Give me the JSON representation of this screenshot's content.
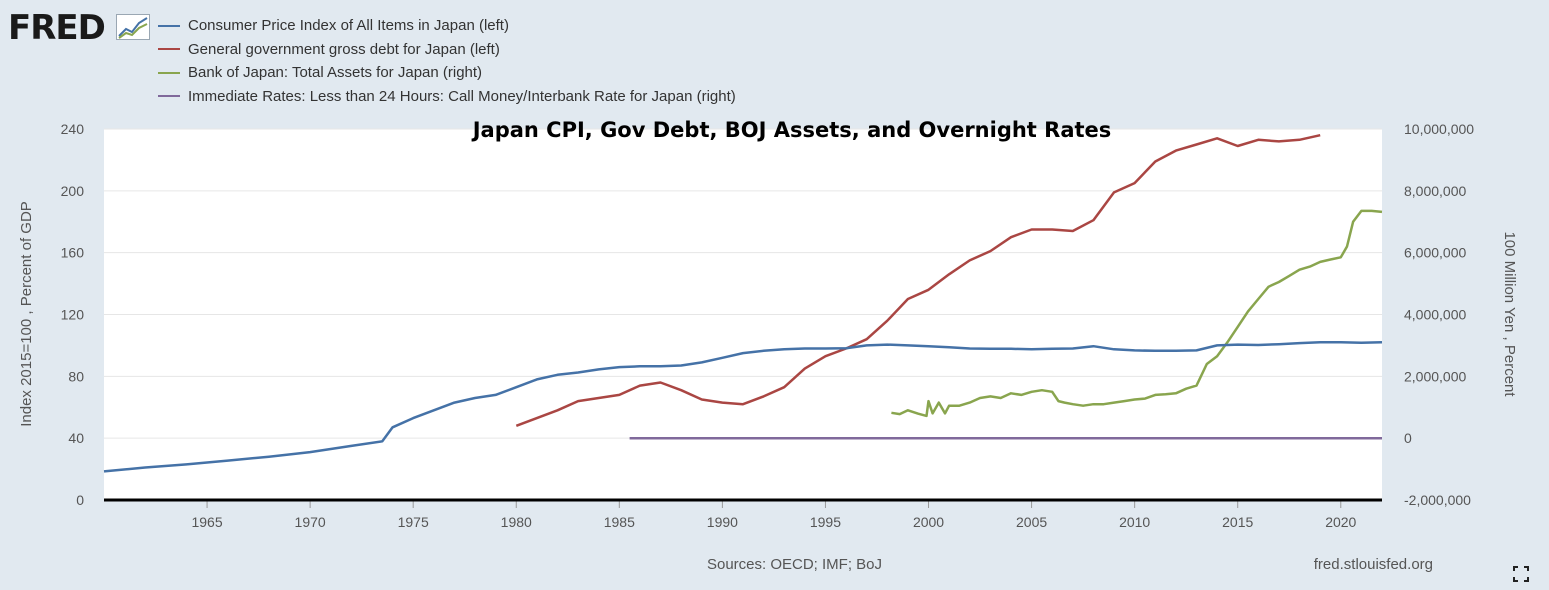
{
  "header": {
    "logo_text": "FRED"
  },
  "colors": {
    "cpi": "#4572a7",
    "debt": "#aa4643",
    "boj": "#89a54e",
    "rate": "#80699b"
  },
  "chart_data": {
    "type": "line",
    "title": "Japan CPI, Gov Debt, BOJ Assets, and Overnight Rates",
    "ylabel_left": "Index 2015=100 , Percent of GDP",
    "ylabel_right": "100 Million Yen , Percent",
    "xlim": [
      1960,
      2022
    ],
    "ylim_left": [
      0,
      240
    ],
    "ylim_right": [
      -2000000,
      10000000
    ],
    "x_ticks": [
      1965,
      1970,
      1975,
      1980,
      1985,
      1990,
      1995,
      2000,
      2005,
      2010,
      2015,
      2020
    ],
    "y_ticks_left": [
      "240",
      "200",
      "160",
      "120",
      "80",
      "40",
      "0"
    ],
    "y_ticks_right": [
      "10,000,000",
      "8,000,000",
      "6,000,000",
      "4,000,000",
      "2,000,000",
      "0",
      "-2,000,000"
    ],
    "grid": true,
    "legend_position": "top-left",
    "series": [
      {
        "name": "Consumer Price Index of All Items in Japan (left)",
        "axis": "left",
        "color": "#4572a7",
        "x": [
          1960,
          1962,
          1964,
          1966,
          1968,
          1970,
          1972,
          1973.5,
          1974,
          1975,
          1976,
          1977,
          1978,
          1979,
          1980,
          1981,
          1982,
          1983,
          1984,
          1985,
          1986,
          1987,
          1988,
          1989,
          1990,
          1991,
          1992,
          1993,
          1994,
          1995,
          1996,
          1997,
          1998,
          1999,
          2000,
          2001,
          2002,
          2003,
          2004,
          2005,
          2006,
          2007,
          2008,
          2009,
          2010,
          2011,
          2012,
          2013,
          2014,
          2015,
          2016,
          2017,
          2018,
          2019,
          2020,
          2021,
          2022
        ],
        "y": [
          18.5,
          21,
          23,
          25.5,
          28,
          31,
          35,
          38,
          47,
          53,
          58,
          63,
          66,
          68,
          73,
          78,
          81,
          82.5,
          84.5,
          86,
          86.5,
          86.5,
          87,
          89,
          92,
          95,
          96.5,
          97.5,
          98,
          98,
          98.2,
          100,
          100.5,
          100,
          99.5,
          98.8,
          98,
          97.8,
          97.8,
          97.5,
          97.8,
          98,
          99.5,
          97.5,
          96.8,
          96.5,
          96.5,
          96.8,
          100,
          100.5,
          100.3,
          100.8,
          101.5,
          102,
          102,
          101.7,
          102
        ]
      },
      {
        "name": "General government gross debt for Japan (left)",
        "axis": "left",
        "color": "#aa4643",
        "x": [
          1980,
          1981,
          1982,
          1983,
          1984,
          1985,
          1986,
          1987,
          1988,
          1989,
          1990,
          1991,
          1992,
          1993,
          1994,
          1995,
          1996,
          1997,
          1998,
          1999,
          2000,
          2001,
          2002,
          2003,
          2004,
          2005,
          2006,
          2007,
          2008,
          2009,
          2010,
          2011,
          2012,
          2013,
          2014,
          2015,
          2016,
          2017,
          2018,
          2019
        ],
        "y": [
          48,
          53,
          58,
          64,
          66,
          68,
          74,
          76,
          71,
          65,
          63,
          62,
          67,
          73,
          85,
          93,
          98,
          104,
          116,
          130,
          136,
          146,
          155,
          161,
          170,
          175,
          175,
          174,
          181,
          199,
          205,
          219,
          226,
          230,
          234,
          229,
          233,
          232,
          233,
          236
        ]
      },
      {
        "name": "Bank of Japan: Total Assets for Japan (right)",
        "axis": "right",
        "color": "#89a54e",
        "x": [
          1998.2,
          1998.6,
          1999,
          1999.5,
          1999.9,
          2000,
          2000.2,
          2000.5,
          2000.8,
          2001,
          2001.5,
          2002,
          2002.5,
          2003,
          2003.5,
          2004,
          2004.5,
          2005,
          2005.5,
          2006,
          2006.3,
          2006.6,
          2007,
          2007.5,
          2008,
          2008.5,
          2009,
          2009.5,
          2010,
          2010.5,
          2011,
          2011.5,
          2012,
          2012.5,
          2013,
          2013.5,
          2014,
          2014.5,
          2015,
          2015.5,
          2016,
          2016.5,
          2017,
          2017.5,
          2018,
          2018.5,
          2019,
          2019.5,
          2020,
          2020.3,
          2020.6,
          2021,
          2021.5,
          2022
        ],
        "y": [
          820000,
          780000,
          900000,
          790000,
          720000,
          1200000,
          800000,
          1150000,
          800000,
          1050000,
          1050000,
          1150000,
          1300000,
          1350000,
          1300000,
          1450000,
          1400000,
          1500000,
          1550000,
          1500000,
          1200000,
          1150000,
          1100000,
          1050000,
          1100000,
          1100000,
          1150000,
          1200000,
          1250000,
          1280000,
          1400000,
          1420000,
          1450000,
          1600000,
          1700000,
          2400000,
          2650000,
          3100000,
          3600000,
          4100000,
          4500000,
          4900000,
          5050000,
          5250000,
          5450000,
          5550000,
          5700000,
          5780000,
          5850000,
          6200000,
          7000000,
          7350000,
          7350000,
          7320000
        ]
      },
      {
        "name": "Immediate Rates: Less than 24 Hours: Call Money/Interbank Rate for Japan (right)",
        "axis": "right",
        "color": "#80699b",
        "x": [
          1985.5,
          1990,
          1995,
          2000,
          2005,
          2010,
          2015,
          2020,
          2022
        ],
        "y": [
          0,
          0,
          0,
          0,
          0,
          0,
          0,
          0,
          0
        ]
      }
    ]
  },
  "footer": {
    "sources": "Sources: OECD; IMF; BoJ",
    "site": "fred.stlouisfed.org"
  },
  "icons": {
    "logo_graph": "fred-graph-icon",
    "fullscreen": "fullscreen-icon"
  }
}
